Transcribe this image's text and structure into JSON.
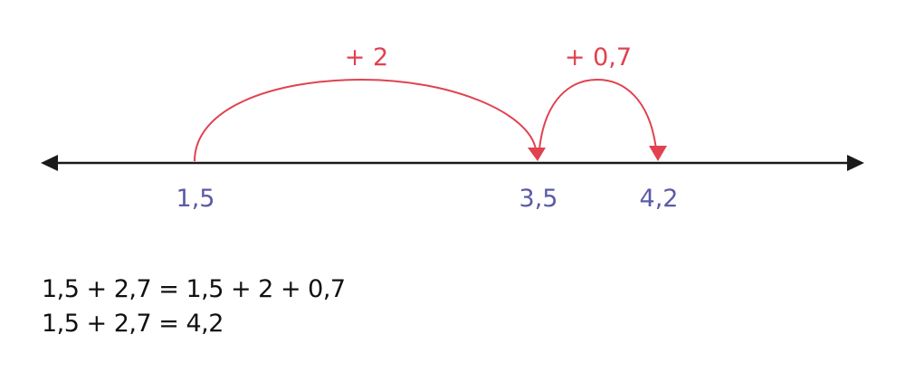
{
  "number_line": {
    "points": [
      {
        "value": "1,5"
      },
      {
        "value": "3,5"
      },
      {
        "value": "4,2"
      }
    ],
    "jumps": [
      {
        "label": "+ 2",
        "from": "1,5",
        "to": "3,5"
      },
      {
        "label": "+ 0,7",
        "from": "3,5",
        "to": "4,2"
      }
    ],
    "colors": {
      "line": "#1a1a1a",
      "jump": "#e0424f",
      "point_label": "#5b5aa8"
    }
  },
  "equations": [
    "1,5 + 2,7 = 1,5 + 2 + 0,7",
    "1,5 + 2,7 = 4,2"
  ]
}
